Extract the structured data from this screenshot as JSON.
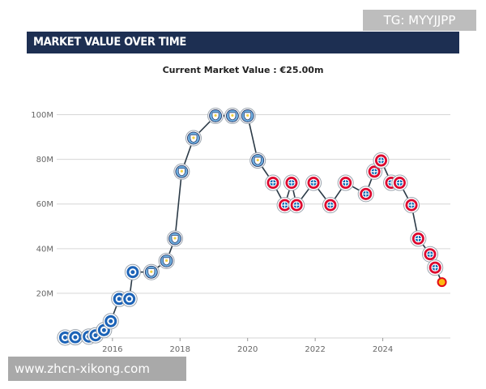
{
  "header": {
    "title": "MARKET VALUE OVER TIME"
  },
  "watermarks": {
    "top": "TG: MYYJJPP",
    "bottom": "www.zhcn-xikong.com"
  },
  "colors": {
    "header_bg": "#1d2f52",
    "line": "#2b3a47",
    "grid": "#d6d6d6",
    "schalke": "#1c63b7",
    "city": "#6cabdd",
    "bayern": "#dc052d",
    "galatasaray": "#e30a17"
  },
  "chart_data": {
    "type": "line",
    "title": "Current Market Value : €25.00m",
    "xlabel": "",
    "ylabel": "",
    "xlim": [
      2014.35,
      2026.0
    ],
    "ylim": [
      0,
      110
    ],
    "x_ticks": [
      2016,
      2018,
      2020,
      2022,
      2024
    ],
    "y_ticks": [
      {
        "value": 20,
        "label": "20M"
      },
      {
        "value": 40,
        "label": "40M"
      },
      {
        "value": 60,
        "label": "60M"
      },
      {
        "value": 80,
        "label": "80M"
      },
      {
        "value": 100,
        "label": "100M"
      }
    ],
    "grid": true,
    "series": [
      {
        "name": "Market value",
        "points": [
          {
            "x": 2014.6,
            "y": 0.2,
            "club": "schalke"
          },
          {
            "x": 2014.9,
            "y": 0.3,
            "club": "schalke"
          },
          {
            "x": 2015.3,
            "y": 0.6,
            "club": "schalke"
          },
          {
            "x": 2015.5,
            "y": 1.2,
            "club": "schalke"
          },
          {
            "x": 2015.75,
            "y": 3.5,
            "club": "schalke"
          },
          {
            "x": 2015.95,
            "y": 7.5,
            "club": "schalke"
          },
          {
            "x": 2016.2,
            "y": 17.5,
            "club": "schalke"
          },
          {
            "x": 2016.5,
            "y": 17.5,
            "club": "schalke"
          },
          {
            "x": 2016.6,
            "y": 29.5,
            "club": "schalke"
          },
          {
            "x": 2017.15,
            "y": 29.5,
            "club": "city"
          },
          {
            "x": 2017.6,
            "y": 34.5,
            "club": "city"
          },
          {
            "x": 2017.85,
            "y": 44.5,
            "club": "city"
          },
          {
            "x": 2018.05,
            "y": 74.5,
            "club": "city"
          },
          {
            "x": 2018.4,
            "y": 89.5,
            "club": "city"
          },
          {
            "x": 2019.05,
            "y": 99.5,
            "club": "city"
          },
          {
            "x": 2019.55,
            "y": 99.5,
            "club": "city"
          },
          {
            "x": 2020.0,
            "y": 99.5,
            "club": "city"
          },
          {
            "x": 2020.3,
            "y": 79.5,
            "club": "city"
          },
          {
            "x": 2020.75,
            "y": 69.5,
            "club": "bayern"
          },
          {
            "x": 2021.1,
            "y": 59.5,
            "club": "bayern"
          },
          {
            "x": 2021.3,
            "y": 69.5,
            "club": "bayern"
          },
          {
            "x": 2021.45,
            "y": 59.5,
            "club": "bayern"
          },
          {
            "x": 2021.95,
            "y": 69.5,
            "club": "bayern"
          },
          {
            "x": 2022.45,
            "y": 59.5,
            "club": "bayern"
          },
          {
            "x": 2022.9,
            "y": 69.5,
            "club": "bayern"
          },
          {
            "x": 2023.5,
            "y": 64.5,
            "club": "bayern"
          },
          {
            "x": 2023.75,
            "y": 74.5,
            "club": "bayern"
          },
          {
            "x": 2023.95,
            "y": 79.5,
            "club": "bayern"
          },
          {
            "x": 2024.25,
            "y": 69.5,
            "club": "bayern"
          },
          {
            "x": 2024.5,
            "y": 69.5,
            "club": "bayern"
          },
          {
            "x": 2024.85,
            "y": 59.5,
            "club": "bayern"
          },
          {
            "x": 2025.05,
            "y": 44.5,
            "club": "bayern"
          },
          {
            "x": 2025.4,
            "y": 37.5,
            "club": "bayern"
          },
          {
            "x": 2025.55,
            "y": 31.5,
            "club": "bayern"
          },
          {
            "x": 2025.75,
            "y": 25.0,
            "club": "galatasaray"
          }
        ]
      }
    ]
  }
}
